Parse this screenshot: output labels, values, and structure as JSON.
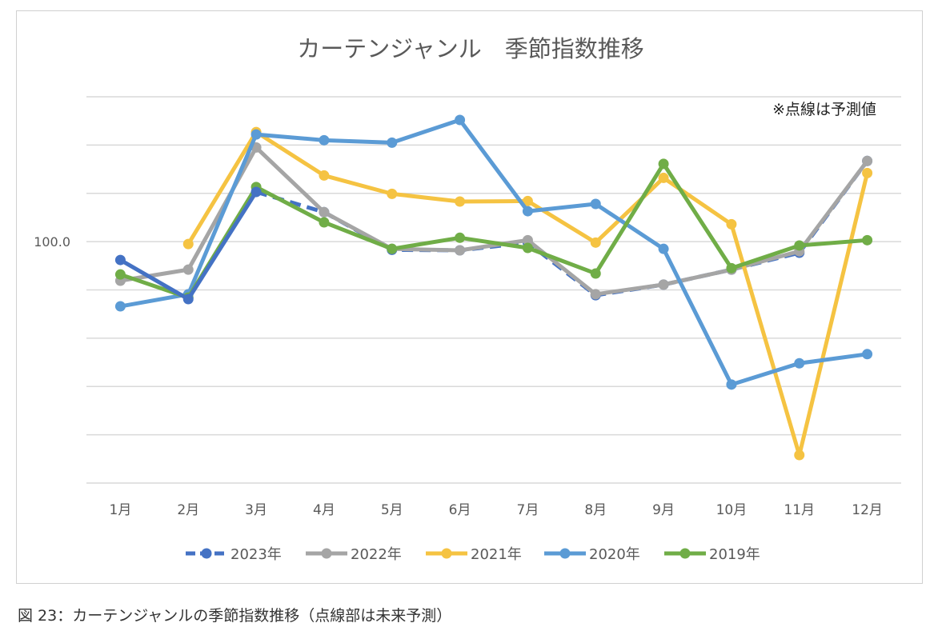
{
  "caption": "図 23：カーテンジャンルの季節指数推移（点線部は未来予測）",
  "chart_data": {
    "type": "line",
    "title": "カーテンジャンル　季節指数推移",
    "annotation": "※点線は予測値",
    "categories": [
      "1月",
      "2月",
      "3月",
      "4月",
      "5月",
      "6月",
      "7月",
      "8月",
      "9月",
      "10月",
      "11月",
      "12月"
    ],
    "y_tick_labels": [
      {
        "value": 100,
        "label": "100.0"
      }
    ],
    "ylim": [
      50,
      130
    ],
    "grid": true,
    "legend_position": "bottom",
    "series": [
      {
        "name": "2023年",
        "color": "#4472c4",
        "values": [
          96.2,
          88.1,
          110.3,
          null,
          null,
          null,
          null,
          null,
          null,
          null,
          null,
          null
        ],
        "forecast": [
          null,
          null,
          110.3,
          106.1,
          98.3,
          98.2,
          99.8,
          88.9,
          91.1,
          94.2,
          97.7,
          116.7
        ]
      },
      {
        "name": "2022年",
        "color": "#a5a5a5",
        "values": [
          91.9,
          94.2,
          119.5,
          106.1,
          98.5,
          98.2,
          100.3,
          89.1,
          91.1,
          94.2,
          98.0,
          116.7
        ]
      },
      {
        "name": "2021年",
        "color": "#f5c342",
        "values": [
          null,
          99.5,
          122.7,
          113.7,
          109.9,
          108.3,
          108.4,
          99.8,
          113.2,
          103.6,
          55.8,
          114.2
        ]
      },
      {
        "name": "2020年",
        "color": "#5b9bd5",
        "values": [
          86.6,
          89.1,
          122.2,
          121.0,
          120.5,
          125.2,
          106.3,
          107.8,
          98.5,
          70.4,
          74.8,
          76.7
        ]
      },
      {
        "name": "2019年",
        "color": "#70ad47",
        "values": [
          93.2,
          88.4,
          111.3,
          104.0,
          98.5,
          100.8,
          98.7,
          93.4,
          116.1,
          94.5,
          99.2,
          100.3
        ]
      }
    ]
  }
}
